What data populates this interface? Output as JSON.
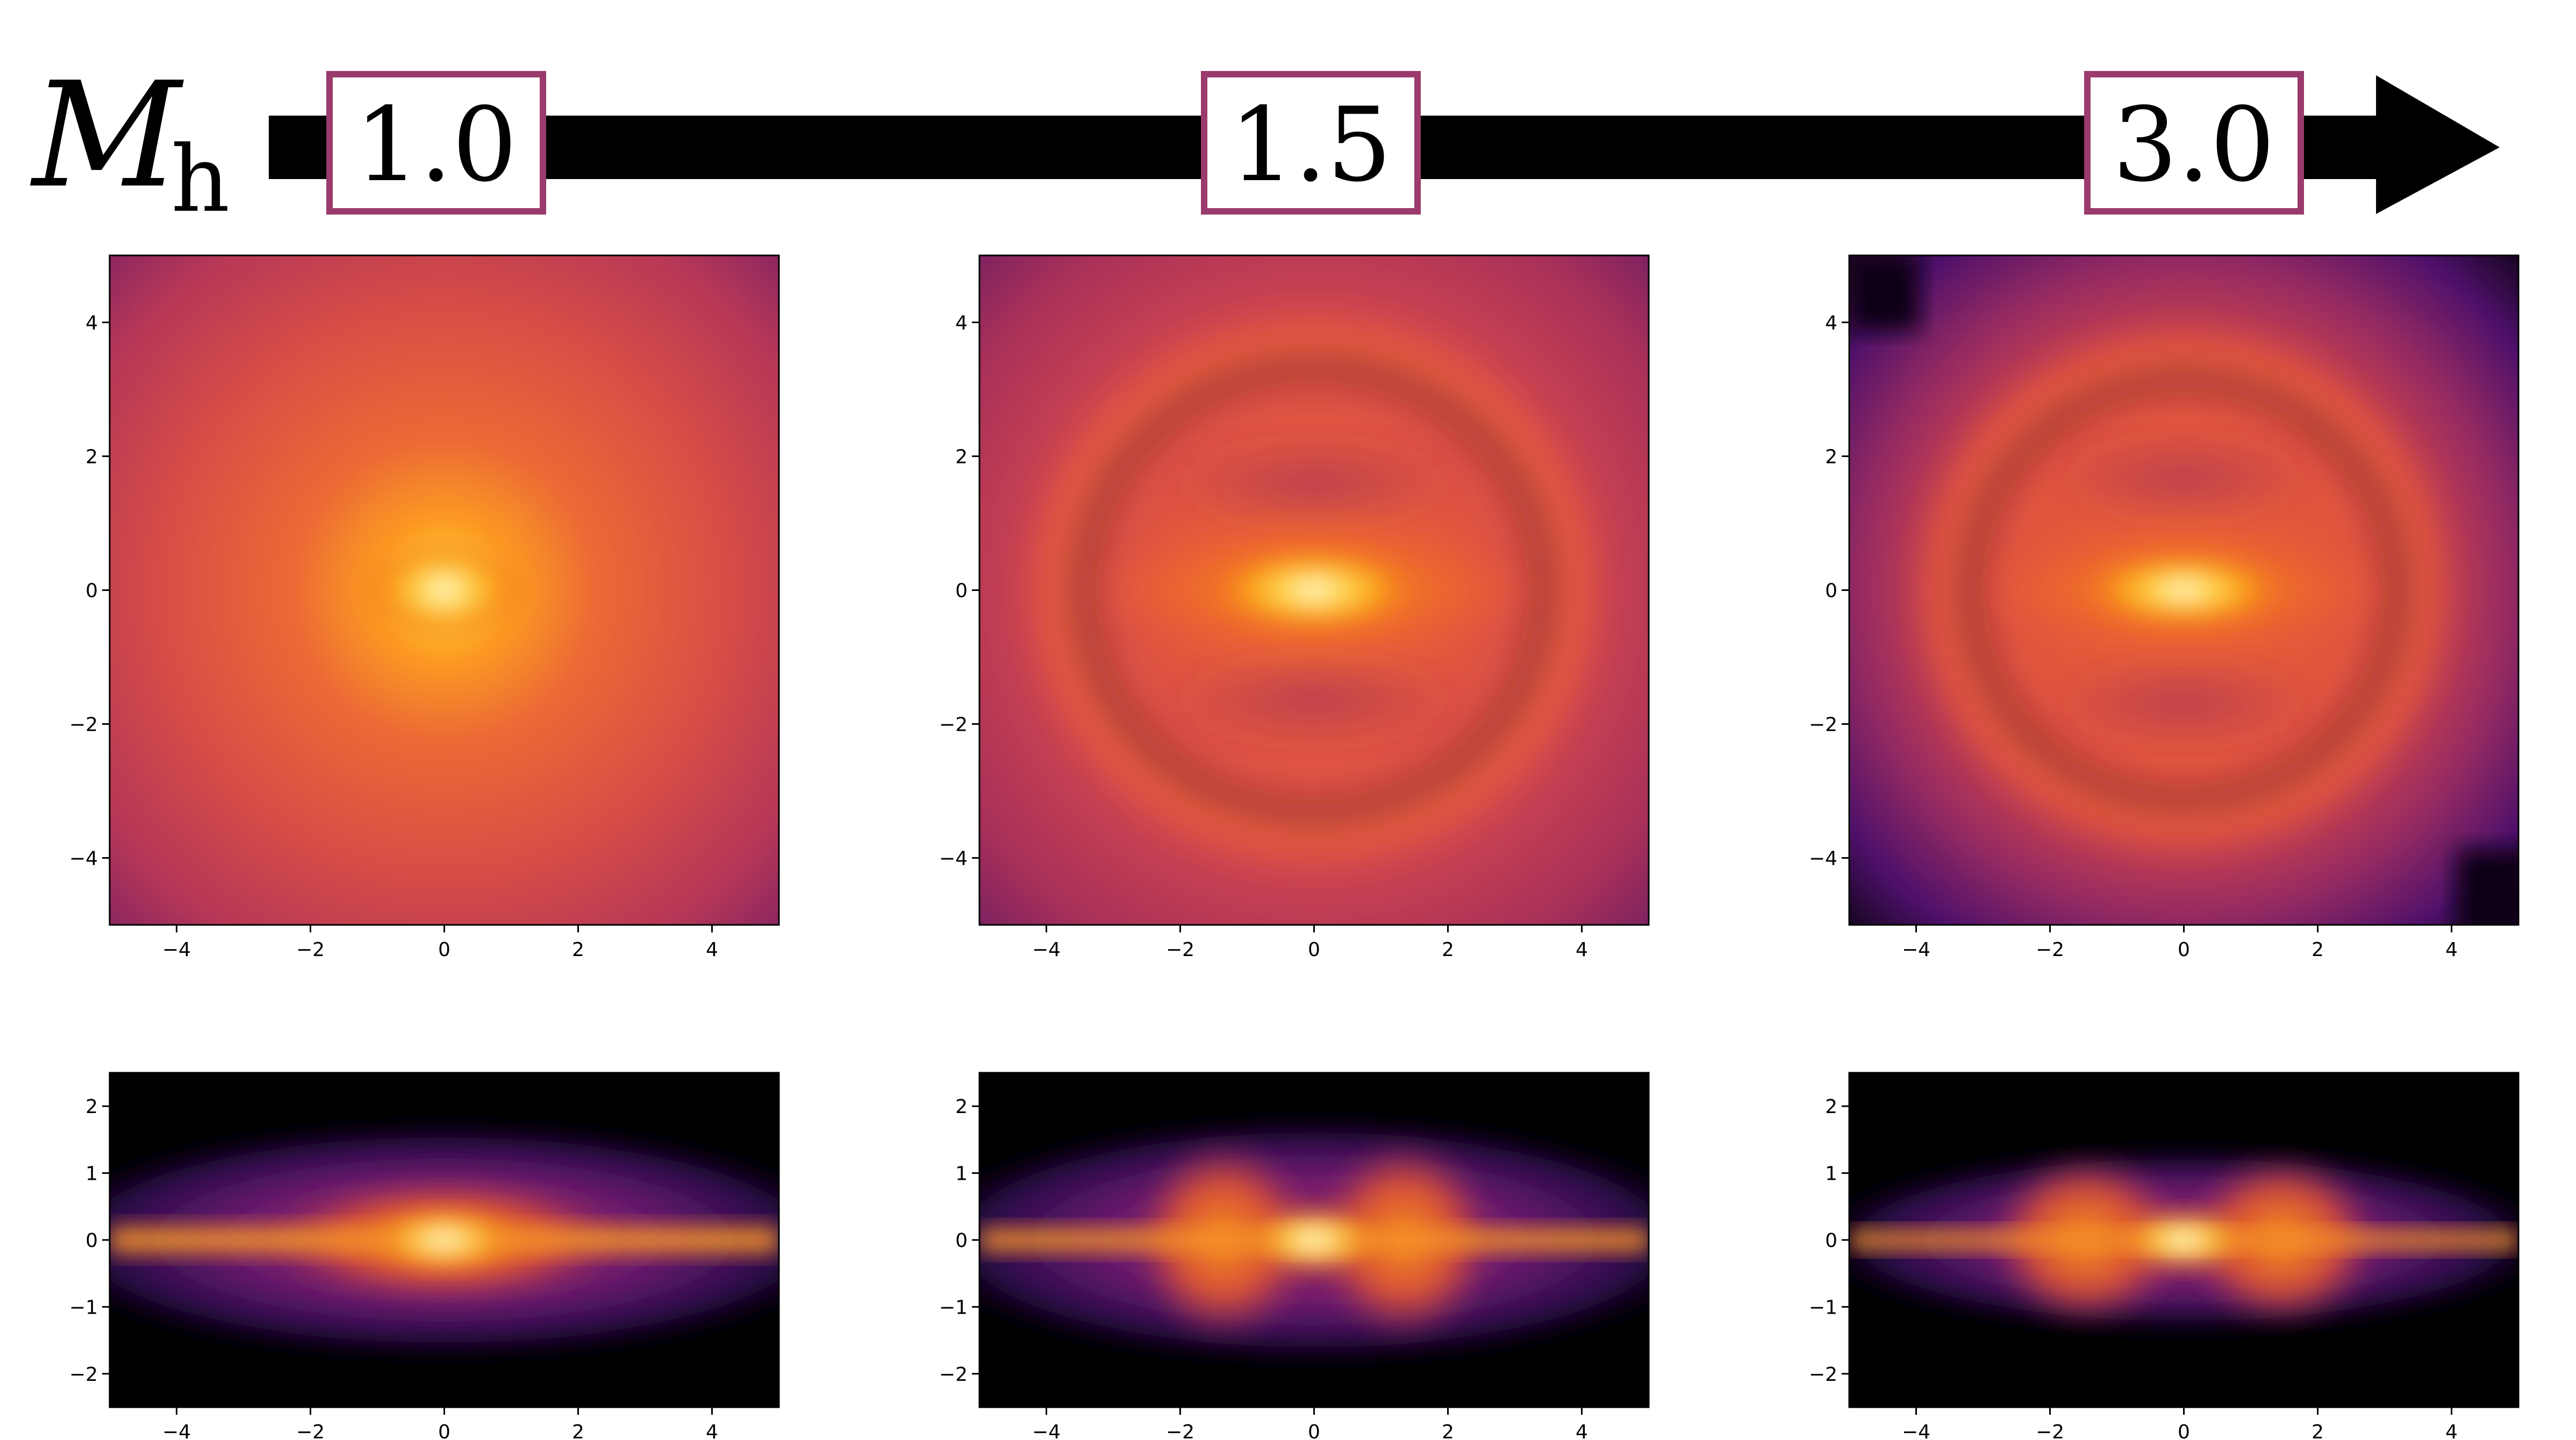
{
  "header": {
    "symbol_main": "M",
    "symbol_sub": "h",
    "values": [
      "1.0",
      "1.5",
      "3.0"
    ],
    "box_color": "#9b3a6c",
    "arrow_color": "#000000"
  },
  "chart_data": [
    {
      "type": "heatmap",
      "title": "",
      "view": "face-on",
      "halo_mass": "1.0",
      "xlabel": "",
      "ylabel": "",
      "xlim": [
        -5,
        5
      ],
      "ylim": [
        -5,
        5
      ],
      "xticks": [
        "−4",
        "−2",
        "0",
        "2",
        "4"
      ],
      "yticks": [
        "−4",
        "−2",
        "0",
        "2",
        "4"
      ],
      "colormap": "inferno"
    },
    {
      "type": "heatmap",
      "title": "",
      "view": "face-on",
      "halo_mass": "1.5",
      "xlabel": "",
      "ylabel": "",
      "xlim": [
        -5,
        5
      ],
      "ylim": [
        -5,
        5
      ],
      "xticks": [
        "−4",
        "−2",
        "0",
        "2",
        "4"
      ],
      "yticks": [
        "−4",
        "−2",
        "0",
        "2",
        "4"
      ],
      "colormap": "inferno"
    },
    {
      "type": "heatmap",
      "title": "",
      "view": "face-on",
      "halo_mass": "3.0",
      "xlabel": "",
      "ylabel": "",
      "xlim": [
        -5,
        5
      ],
      "ylim": [
        -5,
        5
      ],
      "xticks": [
        "−4",
        "−2",
        "0",
        "2",
        "4"
      ],
      "yticks": [
        "−4",
        "−2",
        "0",
        "2",
        "4"
      ],
      "colormap": "inferno"
    },
    {
      "type": "heatmap",
      "title": "",
      "view": "edge-on",
      "halo_mass": "1.0",
      "xlabel": "",
      "ylabel": "",
      "xlim": [
        -5,
        5
      ],
      "ylim": [
        -2.5,
        2.5
      ],
      "xticks": [
        "−4",
        "−2",
        "0",
        "2",
        "4"
      ],
      "yticks": [
        "−2",
        "−1",
        "0",
        "1",
        "2"
      ],
      "colormap": "inferno"
    },
    {
      "type": "heatmap",
      "title": "",
      "view": "edge-on",
      "halo_mass": "1.5",
      "xlabel": "",
      "ylabel": "",
      "xlim": [
        -5,
        5
      ],
      "ylim": [
        -2.5,
        2.5
      ],
      "xticks": [
        "−4",
        "−2",
        "0",
        "2",
        "4"
      ],
      "yticks": [
        "−2",
        "−1",
        "0",
        "1",
        "2"
      ],
      "colormap": "inferno"
    },
    {
      "type": "heatmap",
      "title": "",
      "view": "edge-on",
      "halo_mass": "3.0",
      "xlabel": "",
      "ylabel": "",
      "xlim": [
        -5,
        5
      ],
      "ylim": [
        -2.5,
        2.5
      ],
      "xticks": [
        "−4",
        "−2",
        "0",
        "2",
        "4"
      ],
      "yticks": [
        "−2",
        "−1",
        "0",
        "1",
        "2"
      ],
      "colormap": "inferno"
    }
  ]
}
